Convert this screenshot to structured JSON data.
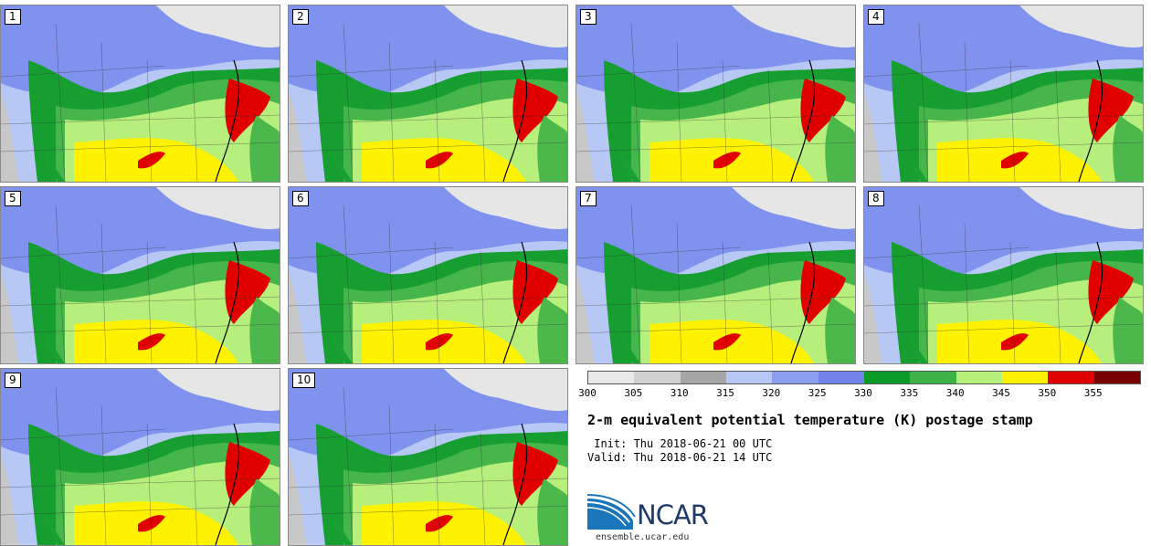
{
  "panels": [
    {
      "number": "1"
    },
    {
      "number": "2"
    },
    {
      "number": "3"
    },
    {
      "number": "4"
    },
    {
      "number": "5"
    },
    {
      "number": "6"
    },
    {
      "number": "7"
    },
    {
      "number": "8"
    },
    {
      "number": "9"
    },
    {
      "number": "10"
    }
  ],
  "colorbar": {
    "colors": [
      "#e8e8e8",
      "#d2d2d2",
      "#a6a6a6",
      "#b7c7f4",
      "#8c9ef0",
      "#7084ec",
      "#0a9a28",
      "#3eb245",
      "#b4f07a",
      "#fff200",
      "#e00000",
      "#7a0000"
    ],
    "ticks": [
      "300",
      "305",
      "310",
      "315",
      "320",
      "325",
      "330",
      "335",
      "340",
      "345",
      "350",
      "355"
    ]
  },
  "title": "2-m equivalent potential temperature (K) postage stamp",
  "init": " Init: Thu 2018-06-21 00 UTC",
  "valid": "Valid: Thu 2018-06-21 14 UTC",
  "logo": {
    "name": "NCAR",
    "site": "ensemble.ucar.edu"
  }
}
